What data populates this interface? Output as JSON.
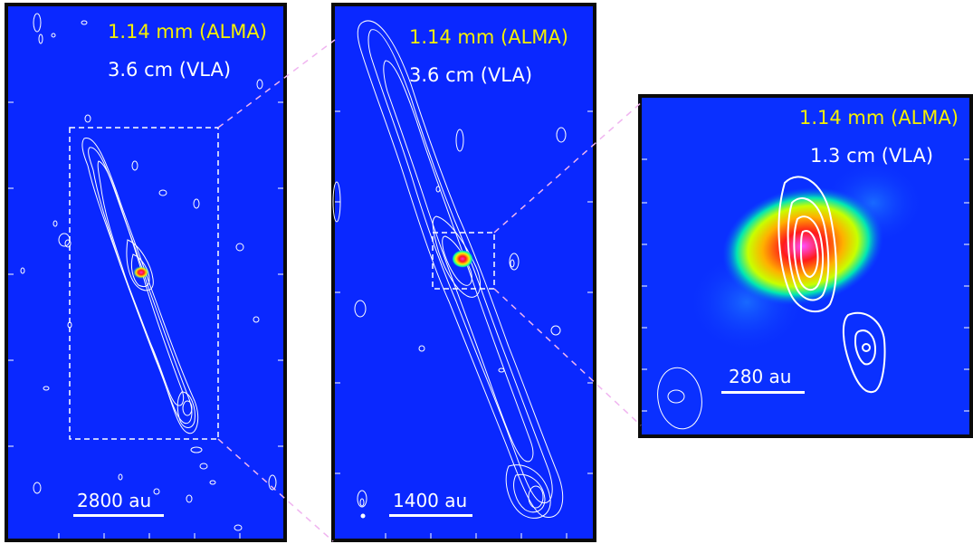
{
  "panels": [
    {
      "band1": "1.14 mm (ALMA)",
      "band2": "3.6 cm (VLA)",
      "scale": "2800 au"
    },
    {
      "band1": "1.14 mm (ALMA)",
      "band2": "3.6 cm (VLA)",
      "scale": "1400 au"
    },
    {
      "band1": "1.14 mm (ALMA)",
      "band2": "1.3 cm (VLA)",
      "scale": "280 au"
    }
  ],
  "colors": {
    "background_map": "#0a28ff",
    "contour": "#ffffff",
    "label_alma": "#f5f000",
    "label_vla": "#ffffff",
    "zoom_link": "#f0b4f0"
  }
}
